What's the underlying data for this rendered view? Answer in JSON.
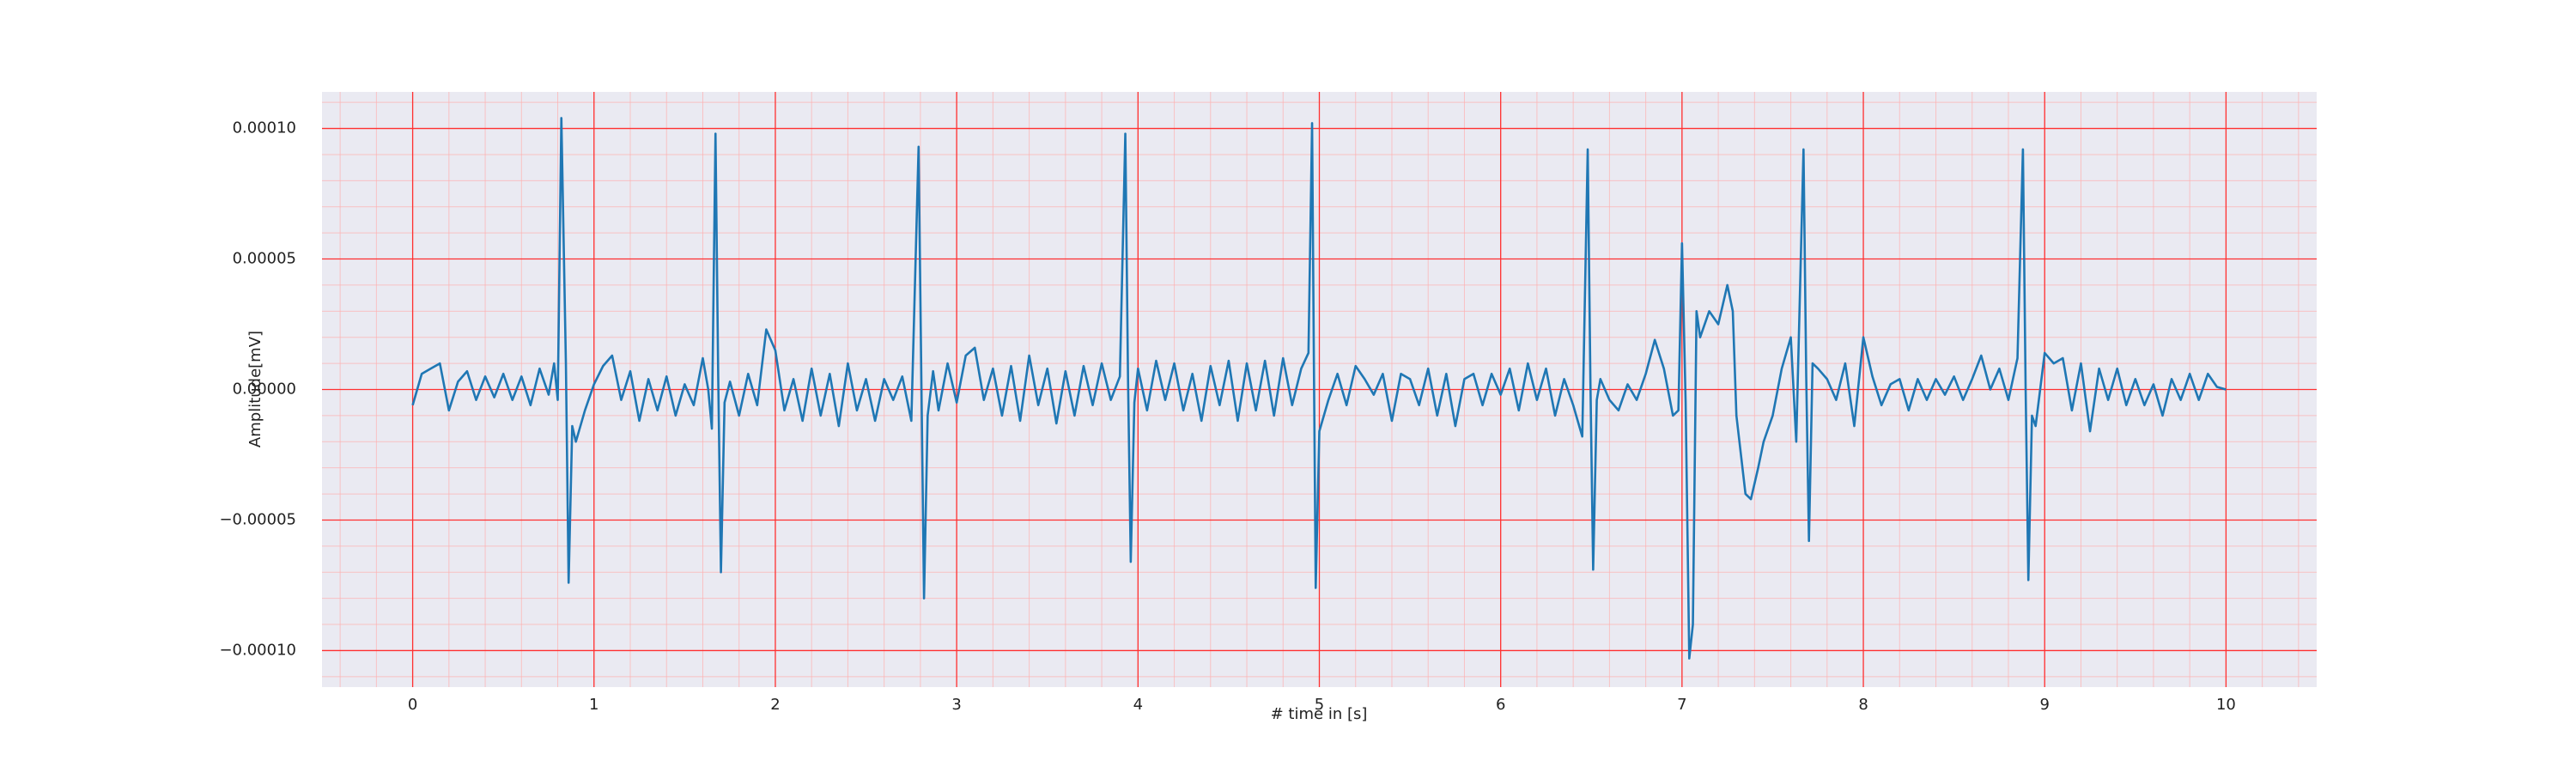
{
  "chart_data": {
    "type": "line",
    "xlabel": "# time in [s]",
    "ylabel": "Amplitude[mV]",
    "xlim": [
      -0.5,
      10.5
    ],
    "ylim": [
      -0.000114,
      0.000114
    ],
    "xticks": [
      0,
      1,
      2,
      3,
      4,
      5,
      6,
      7,
      8,
      9,
      10
    ],
    "yticks": [
      {
        "value": -0.0001,
        "label": "−0.00010"
      },
      {
        "value": -5e-05,
        "label": "−0.00005"
      },
      {
        "value": 0,
        "label": "0.00000"
      },
      {
        "value": 5e-05,
        "label": "0.00005"
      },
      {
        "value": 0.0001,
        "label": "0.00010"
      }
    ],
    "grid": true,
    "minor_grid": true,
    "series": [
      {
        "color": "#1f77b4",
        "x": [
          0,
          0.05,
          0.1,
          0.15,
          0.2,
          0.25,
          0.3,
          0.35,
          0.4,
          0.45,
          0.5,
          0.55,
          0.6,
          0.65,
          0.7,
          0.75,
          0.78,
          0.8,
          0.82,
          0.845,
          0.86,
          0.88,
          0.9,
          0.95,
          1.0,
          1.05,
          1.1,
          1.15,
          1.2,
          1.25,
          1.3,
          1.35,
          1.4,
          1.45,
          1.5,
          1.55,
          1.6,
          1.63,
          1.65,
          1.67,
          1.685,
          1.7,
          1.72,
          1.75,
          1.8,
          1.85,
          1.9,
          1.95,
          2.0,
          2.05,
          2.1,
          2.15,
          2.2,
          2.25,
          2.3,
          2.35,
          2.4,
          2.45,
          2.5,
          2.55,
          2.6,
          2.65,
          2.7,
          2.75,
          2.79,
          2.805,
          2.82,
          2.84,
          2.87,
          2.9,
          2.95,
          3.0,
          3.05,
          3.1,
          3.15,
          3.2,
          3.25,
          3.3,
          3.35,
          3.4,
          3.45,
          3.5,
          3.55,
          3.6,
          3.65,
          3.7,
          3.75,
          3.8,
          3.85,
          3.9,
          3.93,
          3.945,
          3.96,
          3.98,
          4.0,
          4.05,
          4.1,
          4.15,
          4.2,
          4.25,
          4.3,
          4.35,
          4.4,
          4.45,
          4.5,
          4.55,
          4.6,
          4.65,
          4.7,
          4.75,
          4.8,
          4.85,
          4.9,
          4.94,
          4.96,
          4.97,
          4.98,
          5.0,
          5.05,
          5.1,
          5.15,
          5.2,
          5.25,
          5.3,
          5.35,
          5.4,
          5.45,
          5.5,
          5.55,
          5.6,
          5.65,
          5.7,
          5.75,
          5.8,
          5.85,
          5.9,
          5.95,
          6.0,
          6.05,
          6.1,
          6.15,
          6.2,
          6.25,
          6.3,
          6.35,
          6.4,
          6.45,
          6.48,
          6.495,
          6.51,
          6.53,
          6.55,
          6.6,
          6.65,
          6.7,
          6.75,
          6.8,
          6.85,
          6.9,
          6.95,
          6.98,
          7.0,
          7.02,
          7.04,
          7.06,
          7.08,
          7.1,
          7.15,
          7.2,
          7.25,
          7.28,
          7.3,
          7.35,
          7.38,
          7.42,
          7.45,
          7.5,
          7.55,
          7.6,
          7.63,
          7.67,
          7.685,
          7.7,
          7.72,
          7.75,
          7.8,
          7.85,
          7.9,
          7.95,
          8.0,
          8.05,
          8.1,
          8.15,
          8.2,
          8.25,
          8.3,
          8.35,
          8.4,
          8.45,
          8.5,
          8.55,
          8.6,
          8.65,
          8.7,
          8.75,
          8.8,
          8.85,
          8.88,
          8.895,
          8.91,
          8.93,
          8.95,
          9.0,
          9.05,
          9.1,
          9.15,
          9.2,
          9.25,
          9.3,
          9.35,
          9.4,
          9.45,
          9.5,
          9.55,
          9.6,
          9.65,
          9.7,
          9.75,
          9.8,
          9.85,
          9.9,
          9.95,
          10.0
        ],
        "values": [
          -6e-06,
          6e-06,
          8e-06,
          1e-05,
          -8e-06,
          3e-06,
          7e-06,
          -4e-06,
          5e-06,
          -3e-06,
          6e-06,
          -4e-06,
          5e-06,
          -6e-06,
          8e-06,
          -2e-06,
          1e-05,
          -4e-06,
          0.000104,
          1e-05,
          -7.4e-05,
          -1.4e-05,
          -2e-05,
          -8e-06,
          2e-06,
          9e-06,
          1.3e-05,
          -4e-06,
          7e-06,
          -1.2e-05,
          4e-06,
          -8e-06,
          5e-06,
          -1e-05,
          2e-06,
          -6e-06,
          1.2e-05,
          0,
          -1.5e-05,
          9.8e-05,
          5e-06,
          -7e-05,
          -5e-06,
          3e-06,
          -1e-05,
          6e-06,
          -6e-06,
          2.3e-05,
          1.5e-05,
          -8e-06,
          4e-06,
          -1.2e-05,
          8e-06,
          -1e-05,
          6e-06,
          -1.4e-05,
          1e-05,
          -8e-06,
          4e-06,
          -1.2e-05,
          4e-06,
          -4e-06,
          5e-06,
          -1.2e-05,
          9.3e-05,
          5e-06,
          -8e-05,
          -1e-05,
          7e-06,
          -8e-06,
          1e-05,
          -5e-06,
          1.3e-05,
          1.6e-05,
          -4e-06,
          8e-06,
          -1e-05,
          9e-06,
          -1.2e-05,
          1.3e-05,
          -6e-06,
          8e-06,
          -1.3e-05,
          7e-06,
          -1e-05,
          9e-06,
          -6e-06,
          1e-05,
          -4e-06,
          5e-06,
          9.8e-05,
          4e-06,
          -6.6e-05,
          -5e-06,
          8e-06,
          -8e-06,
          1.1e-05,
          -4e-06,
          1e-05,
          -8e-06,
          6e-06,
          -1.2e-05,
          9e-06,
          -6e-06,
          1.1e-05,
          -1.2e-05,
          1e-05,
          -8e-06,
          1.1e-05,
          -1e-05,
          1.2e-05,
          -6e-06,
          8e-06,
          1.4e-05,
          0.000102,
          1e-05,
          -7.6e-05,
          -1.6e-05,
          -4e-06,
          6e-06,
          -6e-06,
          9e-06,
          4e-06,
          -2e-06,
          6e-06,
          -1.2e-05,
          6e-06,
          4e-06,
          -6e-06,
          8e-06,
          -1e-05,
          6e-06,
          -1.4e-05,
          4e-06,
          6e-06,
          -6e-06,
          6e-06,
          -2e-06,
          8e-06,
          -8e-06,
          1e-05,
          -4e-06,
          8e-06,
          -1e-05,
          4e-06,
          -6e-06,
          -1.8e-05,
          9.2e-05,
          2e-06,
          -6.9e-05,
          -4e-06,
          4e-06,
          -4e-06,
          -8e-06,
          2e-06,
          -4e-06,
          6e-06,
          1.9e-05,
          8e-06,
          -1e-05,
          -8e-06,
          5.6e-05,
          -5e-06,
          -0.000103,
          -9e-05,
          3e-05,
          2e-05,
          3e-05,
          2.5e-05,
          4e-05,
          3e-05,
          -1e-05,
          -4e-05,
          -4.2e-05,
          -3e-05,
          -2e-05,
          -1e-05,
          8e-06,
          2e-05,
          -2e-05,
          9.2e-05,
          5e-06,
          -5.8e-05,
          1e-05,
          8e-06,
          4e-06,
          -4e-06,
          1e-05,
          -1.4e-05,
          2e-05,
          5e-06,
          -6e-06,
          2e-06,
          4e-06,
          -8e-06,
          4e-06,
          -4e-06,
          4e-06,
          -2e-06,
          5e-06,
          -4e-06,
          4e-06,
          1.3e-05,
          0,
          8e-06,
          -4e-06,
          1.2e-05,
          9.2e-05,
          0,
          -7.3e-05,
          -1e-05,
          -1.4e-05,
          1.4e-05,
          1e-05,
          1.2e-05,
          -8e-06,
          1e-05,
          -1.6e-05,
          8e-06,
          -4e-06,
          8e-06,
          -6e-06,
          4e-06,
          -6e-06,
          2e-06,
          -1e-05,
          4e-06,
          -4e-06,
          6e-06,
          -4e-06,
          6e-06,
          1e-06,
          0
        ]
      }
    ]
  }
}
